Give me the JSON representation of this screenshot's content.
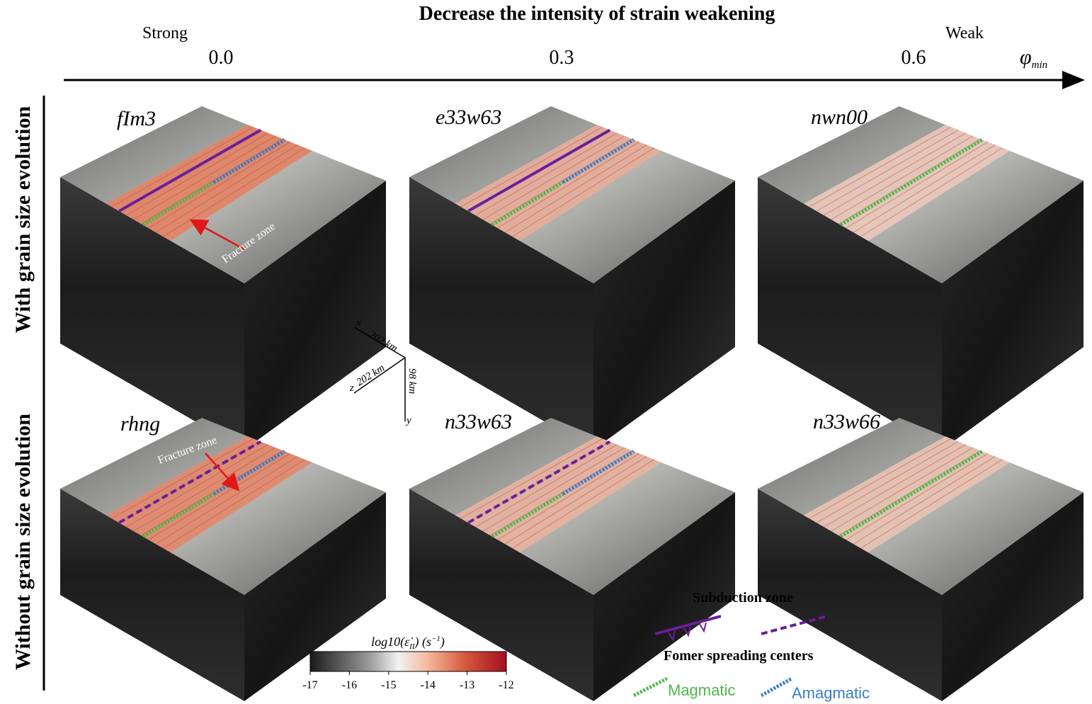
{
  "header": {
    "title": "Decrease the intensity of strain weakening",
    "strong_label": "Strong",
    "weak_label": "Weak",
    "axis_values": [
      "0.0",
      "0.3",
      "0.6"
    ],
    "axis_symbol": "φ",
    "axis_symbol_sub": "min"
  },
  "rows": [
    "With grain size evolution",
    "Without grain size evolution"
  ],
  "panels": [
    {
      "title": "fIm3",
      "annotation": "Fracture zone"
    },
    {
      "title": "e33w63"
    },
    {
      "title": "nwn00"
    },
    {
      "title": "rhng",
      "annotation": "Fracture zone"
    },
    {
      "title": "n33w63"
    },
    {
      "title": "n33w66"
    }
  ],
  "axes": {
    "x": "x",
    "x_length": "202 km",
    "z": "z",
    "z_length": "202 km",
    "y": "y",
    "y_length": "98 km"
  },
  "colorbar": {
    "label": [
      "log10(",
      "ε̇",
      "II",
      ")  (s",
      "−1",
      ")"
    ],
    "ticks": [
      -17,
      -16,
      -15,
      -14,
      -13,
      -12
    ]
  },
  "legend": {
    "subduction": "Subduction zone",
    "spreading": "Fomer spreading centers",
    "magmatic": "Magmatic",
    "amagmatic": "Amagmatic"
  }
}
